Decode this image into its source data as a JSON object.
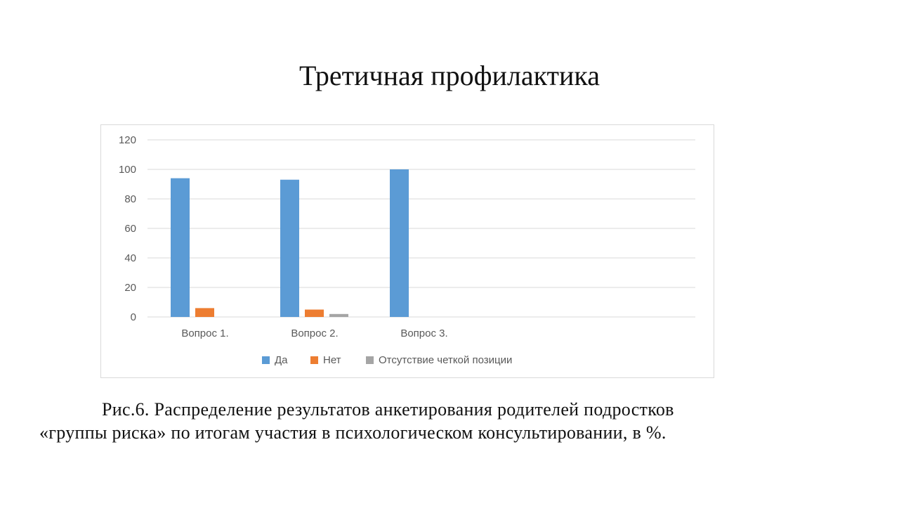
{
  "slide": {
    "title": "Третичная профилактика",
    "caption_line1": "Рис.6. Распределение результатов анкетирования родителей подростков",
    "caption_line2": "«группы риска» по итогам участия в психологическом консультировании, в %."
  },
  "chart_data": {
    "type": "bar",
    "categories": [
      "Вопрос 1.",
      "Вопрос 2.",
      "Вопрос 3.",
      "",
      ""
    ],
    "series": [
      {
        "name": "Да",
        "color": "#5b9bd5",
        "values": [
          94,
          93,
          100,
          null,
          null
        ]
      },
      {
        "name": "Нет",
        "color": "#ed7d31",
        "values": [
          6,
          5,
          0,
          null,
          null
        ]
      },
      {
        "name": "Отсутствие четкой позиции",
        "color": "#a5a5a5",
        "values": [
          0,
          2,
          0,
          null,
          null
        ]
      }
    ],
    "yticks": [
      "0",
      "20",
      "40",
      "60",
      "80",
      "100",
      "120"
    ],
    "ylim": [
      0,
      120
    ],
    "grid": true,
    "legend_position": "bottom",
    "title": "",
    "xlabel": "",
    "ylabel": ""
  }
}
